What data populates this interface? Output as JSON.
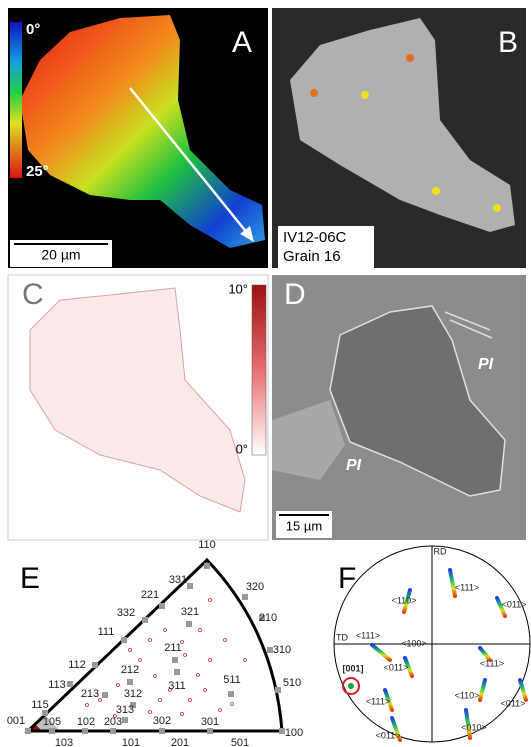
{
  "panel_a": {
    "label": "A",
    "scale_top": "0°",
    "scale_bottom": "25°",
    "scale_bar": "20 µm"
  },
  "panel_b": {
    "label": "B",
    "sample": "IV12-06C",
    "grain": "Grain 16"
  },
  "panel_c": {
    "label": "C",
    "scale_top": "10°",
    "scale_bottom": "0°"
  },
  "panel_d": {
    "label": "D",
    "phases": [
      "PI",
      "PI"
    ],
    "scale_bar": "15 µm"
  },
  "panel_e": {
    "label": "E",
    "poles": [
      "110",
      "331",
      "320",
      "221",
      "332",
      "321",
      "210",
      "111",
      "211",
      "310",
      "112",
      "212",
      "113",
      "311",
      "511",
      "510",
      "213",
      "312",
      "115",
      "313",
      "001",
      "105",
      "102",
      "203",
      "302",
      "301",
      "100",
      "103",
      "101",
      "201",
      "501"
    ]
  },
  "panel_f": {
    "label": "F",
    "axes": [
      "RD",
      "TD"
    ],
    "highlight": "[001]",
    "directions": [
      "<110>",
      "<111>",
      "<111>",
      "<100>",
      "<011>",
      "<011>",
      "<111>",
      "<110>",
      "<111>",
      "<011>",
      "<011>",
      "<010>"
    ]
  }
}
